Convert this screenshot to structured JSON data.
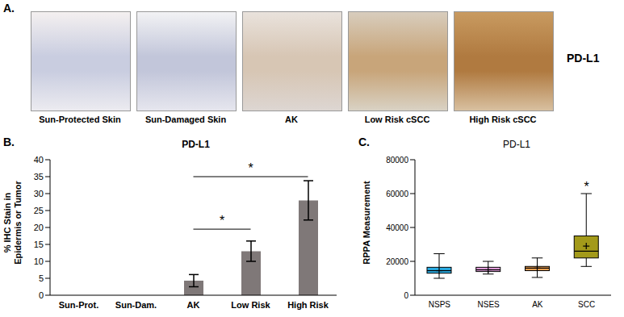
{
  "image_panel": {
    "panel_label": "A.",
    "images": [
      "Sun-Protected Skin",
      "Sun-Damaged Skin",
      "AK",
      "Low Risk cSCC",
      "High Risk cSCC"
    ],
    "marker_label": "PD-L1"
  },
  "chart_data": [
    {
      "panel_label": "B.",
      "type": "bar",
      "title": "PD-L1",
      "y_label": "% IHC Stain in Epidermis or Tumor",
      "categories": [
        "Sun-Prot.",
        "Sun-Dam.",
        "AK",
        "Low Risk",
        "High Risk"
      ],
      "values": [
        0,
        0,
        4.3,
        13,
        28
      ],
      "errors": [
        0,
        0,
        1.8,
        3,
        5.8
      ],
      "color": "#7f7878",
      "ylim": [
        0,
        40
      ],
      "yticks": [
        0,
        5,
        10,
        15,
        20,
        25,
        30,
        35,
        40
      ],
      "grid": false,
      "annotations": [
        {
          "text": "*",
          "from": "AK",
          "to": "Low Risk",
          "y": 19.5
        },
        {
          "text": "*",
          "from": "AK",
          "to": "High Risk",
          "y": 35
        }
      ]
    },
    {
      "panel_label": "C.",
      "type": "box",
      "title": "PD-L1",
      "y_label": "RPPA Measurement",
      "categories": [
        "NSPS",
        "NSES",
        "AK",
        "SCC"
      ],
      "boxes": [
        {
          "min": 10000,
          "q1": 13000,
          "median": 14500,
          "q3": 16500,
          "max": 24500,
          "mean": 14500
        },
        {
          "min": 12500,
          "q1": 14000,
          "median": 15000,
          "q3": 16500,
          "max": 20000,
          "mean": 15000
        },
        {
          "min": 10500,
          "q1": 14500,
          "median": 16000,
          "q3": 17000,
          "max": 22000,
          "mean": 16000
        },
        {
          "min": 17000,
          "q1": 22000,
          "median": 26000,
          "q3": 35000,
          "max": 60000,
          "mean": 29000
        }
      ],
      "colors": [
        "#29abe2",
        "#e8a0e0",
        "#f0a050",
        "#a39a1a"
      ],
      "marker": "+",
      "ylim": [
        0,
        80000
      ],
      "yticks": [
        0,
        20000,
        40000,
        60000,
        80000
      ],
      "grid": false,
      "annotations": [
        {
          "text": "*",
          "category": "SCC",
          "y": 64000
        }
      ]
    }
  ]
}
